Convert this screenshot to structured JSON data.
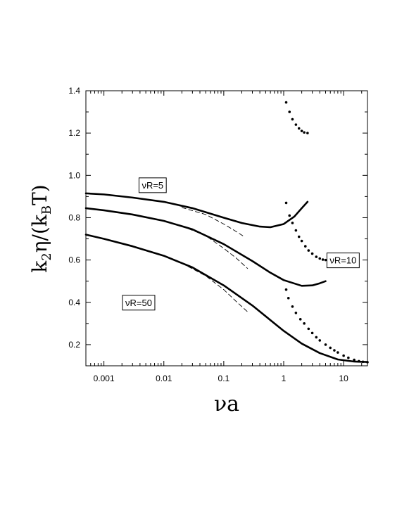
{
  "chart_data": {
    "type": "line",
    "xlabel": "νa",
    "ylabel": "k₂η/(k_BT)",
    "ylabel_parts": {
      "k": "k",
      "sub2": "2",
      "eta": "η/(k",
      "subB": "B",
      "tail": "T)"
    },
    "x_scale": "log",
    "xlim": [
      0.0005,
      25
    ],
    "ylim": [
      0.1,
      1.4
    ],
    "x_ticks": [
      {
        "value": 0.001,
        "label": "0.001"
      },
      {
        "value": 0.01,
        "label": "0.01"
      },
      {
        "value": 0.1,
        "label": "0.1"
      },
      {
        "value": 1,
        "label": "1"
      },
      {
        "value": 10,
        "label": "10"
      }
    ],
    "y_ticks": [
      {
        "value": 0.2,
        "label": "0.2"
      },
      {
        "value": 0.4,
        "label": "0.4"
      },
      {
        "value": 0.6,
        "label": "0.6"
      },
      {
        "value": 0.8,
        "label": "0.8"
      },
      {
        "value": 1.0,
        "label": "1.0"
      },
      {
        "value": 1.2,
        "label": "1.2"
      },
      {
        "value": 1.4,
        "label": "1.4"
      }
    ],
    "grid": false,
    "series": [
      {
        "style": "solid",
        "x": [
          0.0005,
          0.001,
          0.003,
          0.01,
          0.03,
          0.1,
          0.2,
          0.4,
          0.6,
          1.0,
          1.5,
          2.0,
          2.5
        ],
        "y": [
          0.915,
          0.91,
          0.895,
          0.875,
          0.845,
          0.8,
          0.775,
          0.758,
          0.755,
          0.77,
          0.805,
          0.845,
          0.875
        ]
      },
      {
        "style": "solid",
        "x": [
          0.0005,
          0.001,
          0.003,
          0.01,
          0.03,
          0.1,
          0.3,
          0.6,
          1.0,
          2.0,
          3.0,
          4.0,
          5.0
        ],
        "y": [
          0.845,
          0.835,
          0.815,
          0.785,
          0.745,
          0.675,
          0.595,
          0.54,
          0.505,
          0.478,
          0.48,
          0.49,
          0.5
        ]
      },
      {
        "style": "solid",
        "x": [
          0.0005,
          0.001,
          0.003,
          0.01,
          0.03,
          0.1,
          0.3,
          1.0,
          2.0,
          4.0,
          8.0,
          15.0,
          25.0
        ],
        "y": [
          0.72,
          0.7,
          0.665,
          0.62,
          0.565,
          0.48,
          0.385,
          0.265,
          0.205,
          0.16,
          0.13,
          0.12,
          0.118
        ]
      },
      {
        "style": "dashed",
        "x": [
          0.02,
          0.05,
          0.1,
          0.15,
          0.22
        ],
        "y": [
          0.848,
          0.815,
          0.77,
          0.74,
          0.71
        ]
      },
      {
        "style": "dashed",
        "x": [
          0.02,
          0.05,
          0.1,
          0.16,
          0.25
        ],
        "y": [
          0.76,
          0.715,
          0.655,
          0.61,
          0.56
        ]
      },
      {
        "style": "dashed",
        "x": [
          0.02,
          0.05,
          0.1,
          0.16,
          0.25
        ],
        "y": [
          0.585,
          0.525,
          0.46,
          0.405,
          0.355
        ]
      },
      {
        "style": "dotted",
        "x": [
          1.1,
          1.25,
          1.4,
          1.6,
          1.8,
          2.0,
          2.2,
          2.5
        ],
        "y": [
          1.345,
          1.3,
          1.265,
          1.24,
          1.222,
          1.21,
          1.203,
          1.2
        ]
      },
      {
        "style": "dotted",
        "x": [
          1.1,
          1.25,
          1.4,
          1.6,
          1.8,
          2.0,
          2.3,
          2.6,
          3.0,
          3.5,
          4.0,
          4.5,
          5.0
        ],
        "y": [
          0.87,
          0.81,
          0.775,
          0.74,
          0.71,
          0.69,
          0.665,
          0.645,
          0.63,
          0.615,
          0.607,
          0.602,
          0.6
        ]
      },
      {
        "style": "dotted",
        "x": [
          1.1,
          1.2,
          1.4,
          1.6,
          1.9,
          2.2,
          2.6,
          3.0,
          3.5,
          4.0,
          5.0,
          6.0,
          7.0,
          8.0,
          10.0,
          12.0,
          15.0,
          18.0,
          21.0,
          25.0
        ],
        "y": [
          0.46,
          0.42,
          0.38,
          0.35,
          0.32,
          0.3,
          0.275,
          0.255,
          0.235,
          0.22,
          0.2,
          0.185,
          0.173,
          0.163,
          0.148,
          0.138,
          0.128,
          0.122,
          0.119,
          0.117
        ]
      }
    ],
    "annotations": [
      {
        "text": "νR=5",
        "x": 0.0065,
        "y": 0.955
      },
      {
        "text": "νR=10",
        "x": 9.8,
        "y": 0.6
      },
      {
        "text": "νR=50",
        "x": 0.0038,
        "y": 0.4
      }
    ]
  }
}
